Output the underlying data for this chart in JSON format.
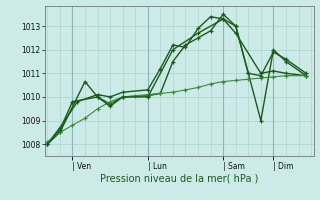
{
  "bg_color": "#cceae7",
  "grid_color": "#aed6d2",
  "line_color_dark": "#1a5c1a",
  "line_color_med": "#3a8a3a",
  "xlabel": "Pression niveau de la mer( hPa )",
  "yticks": [
    1008,
    1009,
    1010,
    1011,
    1012,
    1013
  ],
  "xtick_labels": [
    "| Ven",
    "| Lun",
    "| Sam",
    "| Dim"
  ],
  "xtick_positions": [
    1,
    4,
    7,
    9
  ],
  "xlim": [
    -0.1,
    10.6
  ],
  "ylim": [
    1007.5,
    1013.85
  ],
  "vlines": [
    1,
    4,
    7,
    9
  ],
  "series": [
    {
      "x": [
        0,
        0.5,
        1.5,
        2.0,
        2.5,
        3.0,
        4.0,
        4.5,
        5.0,
        5.5,
        6.0,
        6.5,
        7.0,
        7.5,
        8.0,
        8.5,
        9.0,
        9.5,
        10.3
      ],
      "y": [
        1008.0,
        1008.5,
        1010.65,
        1010.0,
        1009.7,
        1010.0,
        1010.05,
        1010.15,
        1011.5,
        1012.2,
        1012.5,
        1012.8,
        1013.5,
        1013.0,
        1011.0,
        1009.0,
        1012.0,
        1011.5,
        1010.9
      ],
      "lw": 1.0,
      "marker": "+"
    },
    {
      "x": [
        0,
        0.5,
        1.2,
        2.0,
        2.5,
        3.0,
        4.0,
        4.5,
        5.0,
        5.5,
        6.0,
        6.5,
        7.0,
        7.5,
        8.5,
        9.0,
        9.5,
        10.3
      ],
      "y": [
        1008.0,
        1008.7,
        1009.8,
        1010.1,
        1010.0,
        1010.2,
        1010.3,
        1011.2,
        1012.2,
        1012.1,
        1012.9,
        1013.4,
        1013.3,
        1012.7,
        1011.0,
        1011.1,
        1011.0,
        1010.9
      ],
      "lw": 1.0,
      "marker": "+"
    },
    {
      "x": [
        0,
        0.5,
        1.0,
        1.5,
        2.0,
        2.5,
        3.0,
        3.5,
        4.0,
        4.5,
        5.0,
        5.5,
        6.0,
        6.5,
        7.0,
        7.5,
        8.0,
        8.5,
        9.0,
        9.5,
        10.3
      ],
      "y": [
        1008.1,
        1008.5,
        1008.8,
        1009.1,
        1009.5,
        1009.8,
        1010.0,
        1010.05,
        1010.1,
        1010.15,
        1010.2,
        1010.3,
        1010.4,
        1010.55,
        1010.65,
        1010.7,
        1010.75,
        1010.8,
        1010.85,
        1010.9,
        1010.9
      ],
      "lw": 0.8,
      "marker": "+"
    },
    {
      "x": [
        0,
        0.5,
        1.0,
        2.0,
        2.5,
        3.0,
        4.0,
        5.0,
        6.0,
        7.0,
        7.5,
        8.0,
        8.5,
        9.0,
        9.5,
        10.3
      ],
      "y": [
        1008.0,
        1008.6,
        1009.8,
        1010.0,
        1009.6,
        1010.0,
        1010.0,
        1012.0,
        1012.7,
        1013.3,
        1013.0,
        1011.0,
        1010.9,
        1011.9,
        1011.6,
        1011.0
      ],
      "lw": 1.0,
      "marker": "+"
    }
  ]
}
